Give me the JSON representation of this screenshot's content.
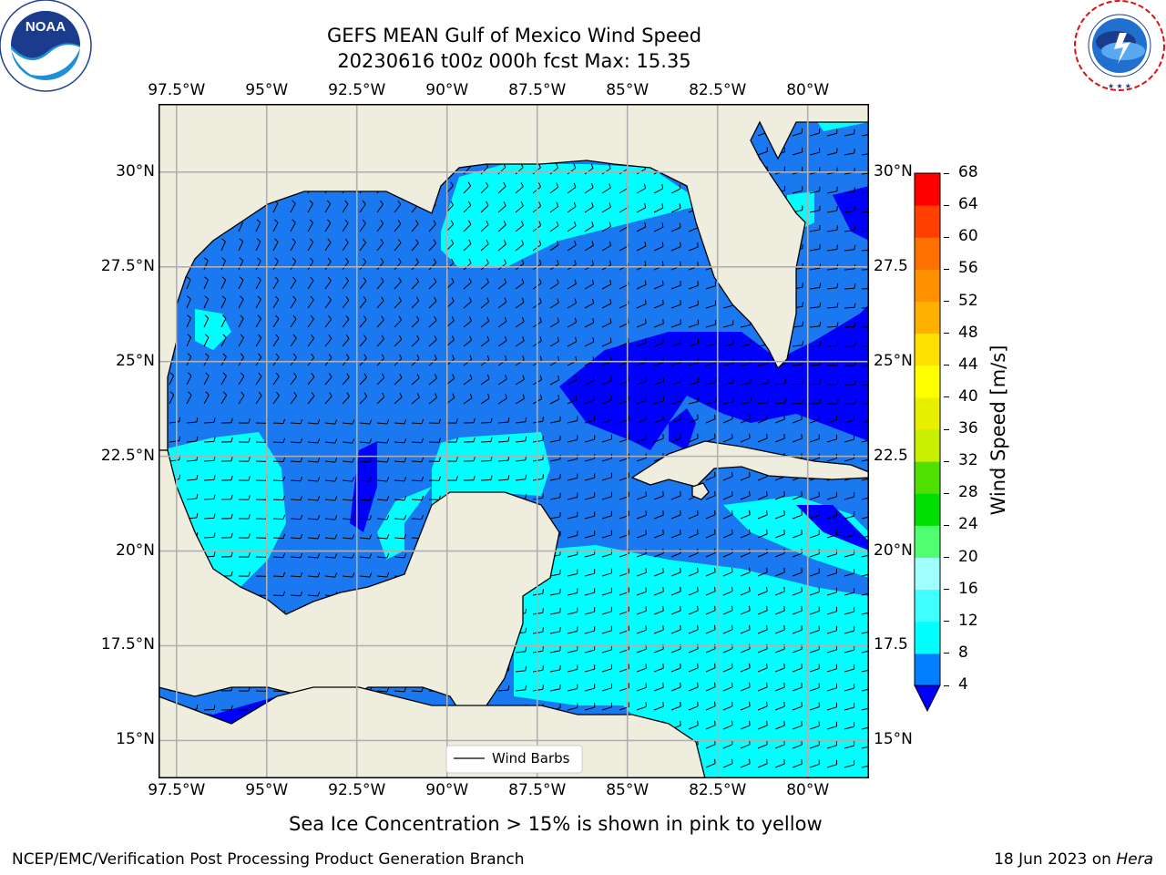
{
  "title": {
    "line1": "GEFS MEAN Gulf of Mexico Wind Speed",
    "line2": "20230616 t00z 000h fcst   Max: 15.35"
  },
  "axes": {
    "lon_labels": [
      "97.5°W",
      "95°W",
      "92.5°W",
      "90°W",
      "87.5°W",
      "85°W",
      "82.5°W",
      "80°W"
    ],
    "lon_values": [
      -97.5,
      -95,
      -92.5,
      -90,
      -87.5,
      -85,
      -82.5,
      -80
    ],
    "lat_labels": [
      "30°N",
      "27.5°N",
      "25°N",
      "22.5°N",
      "20°N",
      "17.5°N",
      "15°N"
    ],
    "lat_values": [
      30,
      27.5,
      25,
      22.5,
      20,
      17.5,
      15
    ],
    "right_lat_labels": [
      "30°N",
      "27.5",
      "25°N",
      "22.5",
      "20°N",
      "17.5",
      "15°N"
    ],
    "lon_range": [
      -98,
      -78.3
    ],
    "lat_range": [
      14,
      31.8
    ]
  },
  "legend": {
    "label": "Wind Barbs"
  },
  "colorbar": {
    "label": "Wind Speed [m/s]",
    "ticks": [
      "68",
      "64",
      "60",
      "56",
      "52",
      "48",
      "44",
      "40",
      "36",
      "32",
      "28",
      "24",
      "20",
      "16",
      "12",
      "8",
      "4"
    ],
    "levels": [
      4,
      8,
      12,
      16,
      20,
      24,
      28,
      32,
      36,
      40,
      44,
      48,
      52,
      56,
      60,
      64,
      68
    ],
    "colors": [
      "#0080ff",
      "#00ffff",
      "#40ffff",
      "#a0ffff",
      "#50ff70",
      "#00e000",
      "#50e000",
      "#c8f000",
      "#e8f000",
      "#ffff00",
      "#ffe000",
      "#ffb000",
      "#ff9000",
      "#ff7000",
      "#ff4000",
      "#ff0000"
    ],
    "under_color": "#0000ff"
  },
  "colors": {
    "land": "#efedde",
    "under4": "#0000ff",
    "band_4_8": "#1a78f0",
    "band_8_12": "#00ffff",
    "band_12_16": "#40ffff",
    "grid": "#b0b0b0"
  },
  "caption": "Sea Ice Concentration > 15% is shown in pink to yellow",
  "footer": {
    "left": "NCEP/EMC/Verification Post Processing Product Generation Branch",
    "right_date": "18 Jun 2023 on ",
    "right_machine": "Hera"
  },
  "logos": {
    "noaa": {
      "text": "NOAA",
      "ring_text": "NATIONAL OCEANIC AND ATMOSPHERIC ADMINISTRATION · U.S. DEPARTMENT OF COMMERCE"
    },
    "nws": {
      "ring_text": "NATIONAL WEATHER SERVICE"
    }
  },
  "chart_data": {
    "type": "heatmap",
    "title": "GEFS MEAN Gulf of Mexico Wind Speed",
    "subtitle": "20230616 t00z 000h fcst   Max: 15.35",
    "xlabel": "",
    "ylabel": "",
    "colorbar_label": "Wind Speed [m/s]",
    "max_value": 15.35,
    "xlim": [
      -98,
      -78.3
    ],
    "ylim": [
      14,
      31.8
    ],
    "grid": true,
    "legend_position": "bottom-center"
  }
}
